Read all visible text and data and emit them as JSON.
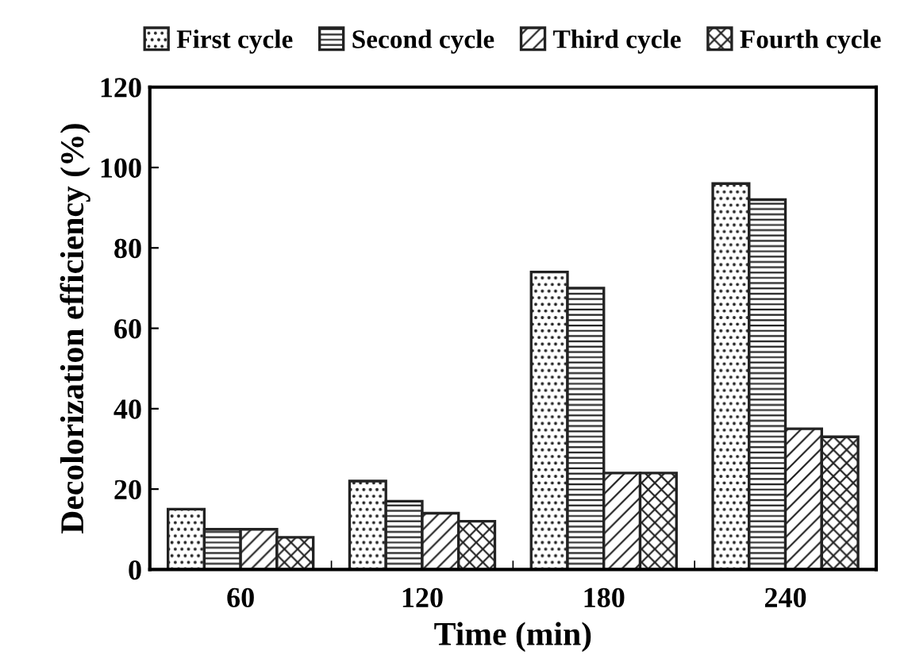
{
  "chart_data": {
    "type": "bar",
    "xlabel": "Time (min)",
    "ylabel": "Decolorization efficiency (%)",
    "categories": [
      "60",
      "120",
      "180",
      "240"
    ],
    "series": [
      {
        "name": "First cycle",
        "color": "#222222",
        "values": [
          15,
          22,
          74,
          96
        ]
      },
      {
        "name": "Second cycle",
        "color": "#222222",
        "values": [
          10,
          17,
          70,
          92
        ]
      },
      {
        "name": "Third cycle",
        "color": "#222222",
        "values": [
          10,
          14,
          24,
          35
        ]
      },
      {
        "name": "Fourth cycle",
        "color": "#222222",
        "values": [
          8,
          12,
          24,
          33
        ]
      }
    ],
    "ylim": [
      0,
      120
    ],
    "yticks": [
      0,
      20,
      40,
      60,
      80,
      100,
      120
    ],
    "grid": false,
    "legend": "top"
  }
}
